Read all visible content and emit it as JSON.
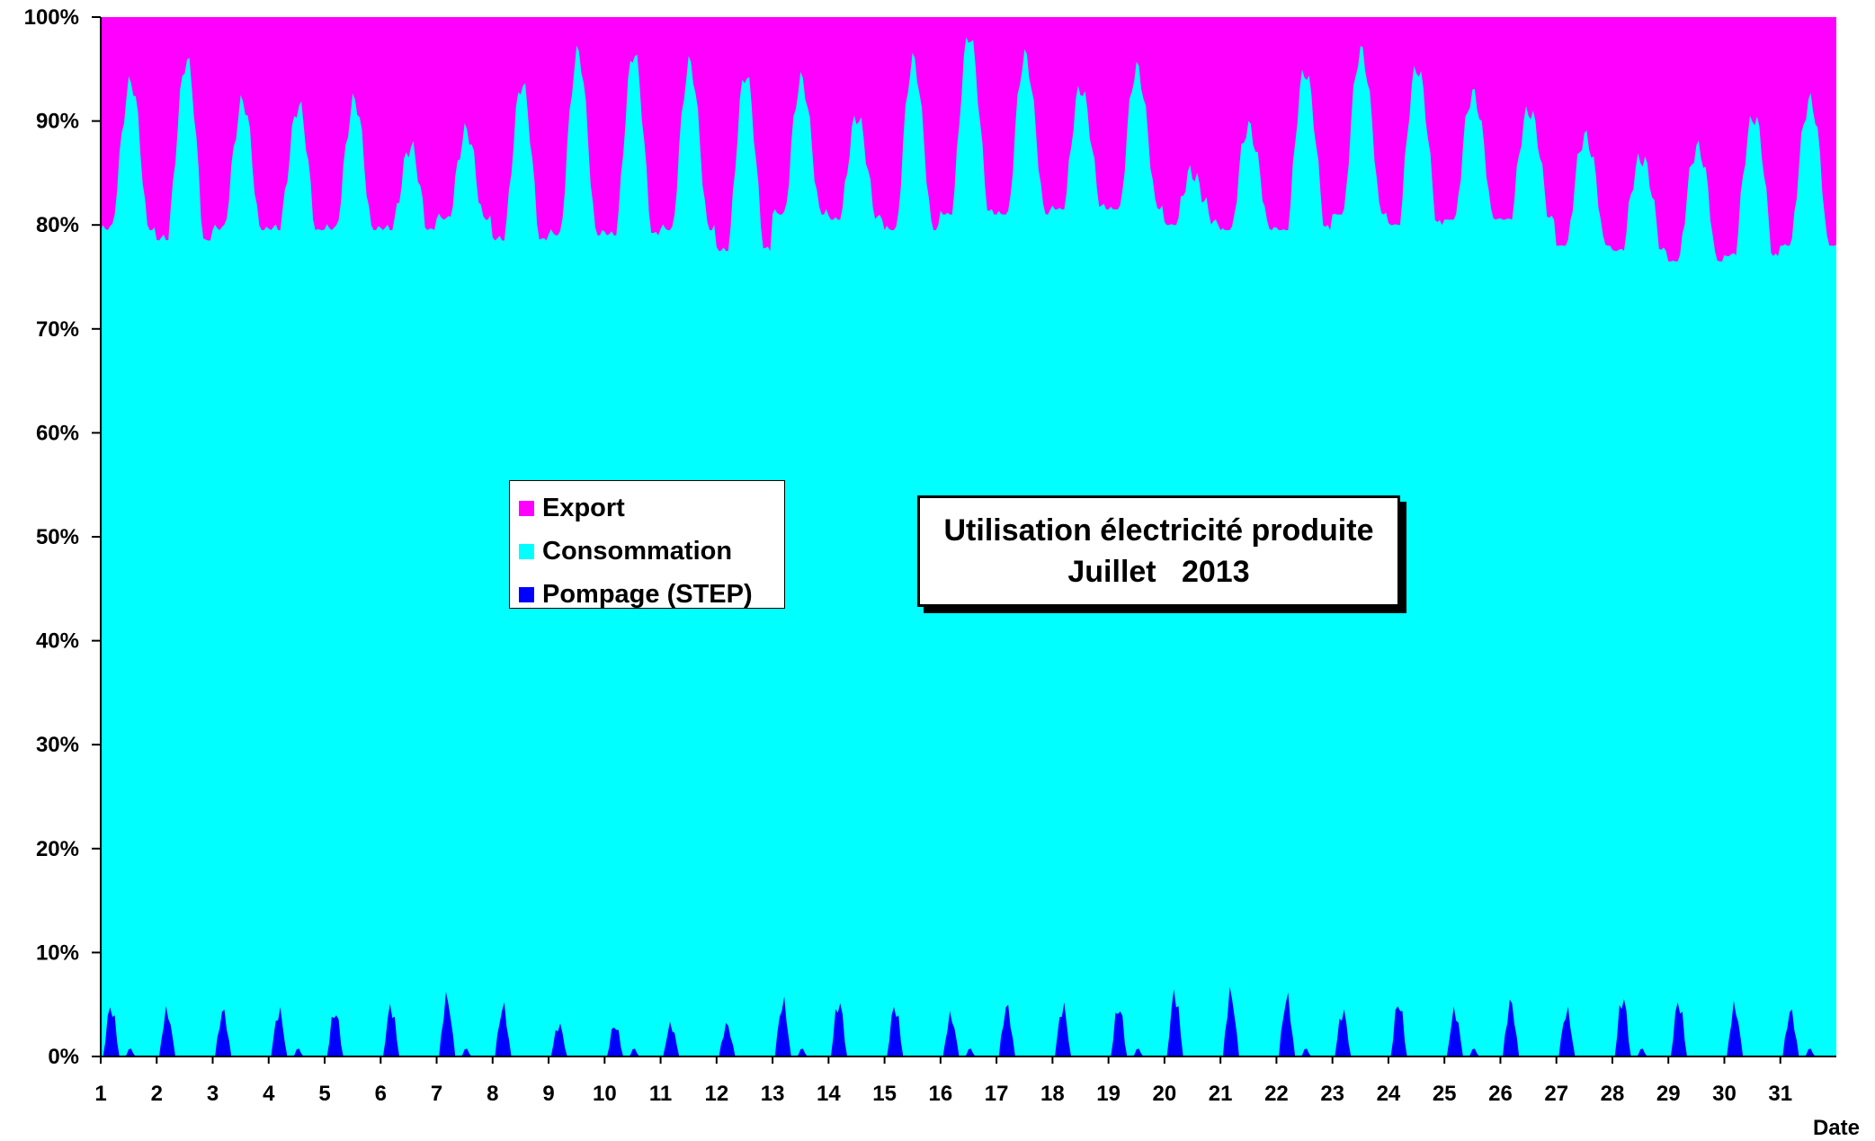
{
  "chart_data": {
    "type": "area",
    "stacked": true,
    "normalized_percent": true,
    "title": "Utilisation électricité produite",
    "subtitle": "Juillet   2013",
    "xlabel": "Date",
    "ylabel": "",
    "ylim": [
      0,
      100
    ],
    "yticks": [
      "0%",
      "10%",
      "20%",
      "30%",
      "40%",
      "50%",
      "60%",
      "70%",
      "80%",
      "90%",
      "100%"
    ],
    "xticks": [
      "1",
      "2",
      "3",
      "4",
      "5",
      "6",
      "7",
      "8",
      "9",
      "10",
      "11",
      "12",
      "13",
      "14",
      "15",
      "16",
      "17",
      "18",
      "19",
      "20",
      "21",
      "22",
      "23",
      "24",
      "25",
      "26",
      "27",
      "28",
      "29",
      "30",
      "31"
    ],
    "legend_position": "center-left",
    "grid": false,
    "series": [
      {
        "name": "Export",
        "color": "#FF00FF",
        "values_note": "remainder to 100%"
      },
      {
        "name": "Consommation",
        "color": "#00FFFF",
        "top_envelope_percent_by_day": [
          {
            "day": 1,
            "min": 79.5,
            "peak": 93.5
          },
          {
            "day": 2,
            "min": 78.5,
            "peak": 95.5
          },
          {
            "day": 3,
            "min": 79.5,
            "peak": 91.5
          },
          {
            "day": 4,
            "min": 79.5,
            "peak": 91.0
          },
          {
            "day": 5,
            "min": 79.5,
            "peak": 91.5
          },
          {
            "day": 6,
            "min": 79.5,
            "peak": 87.0
          },
          {
            "day": 7,
            "min": 80.5,
            "peak": 88.5
          },
          {
            "day": 8,
            "min": 78.5,
            "peak": 93.0
          },
          {
            "day": 9,
            "min": 79.0,
            "peak": 96.0
          },
          {
            "day": 10,
            "min": 79.0,
            "peak": 96.0
          },
          {
            "day": 11,
            "min": 79.5,
            "peak": 95.0
          },
          {
            "day": 12,
            "min": 77.5,
            "peak": 94.0
          },
          {
            "day": 13,
            "min": 81.0,
            "peak": 93.5
          },
          {
            "day": 14,
            "min": 80.5,
            "peak": 90.0
          },
          {
            "day": 15,
            "min": 79.5,
            "peak": 95.5
          },
          {
            "day": 16,
            "min": 81.0,
            "peak": 98.0
          },
          {
            "day": 17,
            "min": 81.0,
            "peak": 96.0
          },
          {
            "day": 18,
            "min": 81.5,
            "peak": 93.0
          },
          {
            "day": 19,
            "min": 81.5,
            "peak": 95.0
          },
          {
            "day": 20,
            "min": 80.0,
            "peak": 85.0
          },
          {
            "day": 21,
            "min": 79.5,
            "peak": 89.5
          },
          {
            "day": 22,
            "min": 79.5,
            "peak": 95.0
          },
          {
            "day": 23,
            "min": 81.0,
            "peak": 97.0
          },
          {
            "day": 24,
            "min": 80.0,
            "peak": 95.5
          },
          {
            "day": 25,
            "min": 80.5,
            "peak": 93.0
          },
          {
            "day": 26,
            "min": 80.5,
            "peak": 91.5
          },
          {
            "day": 27,
            "min": 78.0,
            "peak": 89.0
          },
          {
            "day": 28,
            "min": 77.5,
            "peak": 87.0
          },
          {
            "day": 29,
            "min": 76.5,
            "peak": 88.0
          },
          {
            "day": 30,
            "min": 77.0,
            "peak": 91.0
          },
          {
            "day": 31,
            "min": 78.0,
            "peak": 92.5
          }
        ]
      },
      {
        "name": "Pompage (STEP)",
        "color": "#0000FF",
        "daily_peak_percent": [
          5.5,
          5.0,
          5.0,
          5.0,
          5.0,
          5.5,
          6.5,
          5.5,
          3.5,
          3.5,
          3.5,
          3.5,
          6.0,
          6.0,
          5.5,
          4.5,
          5.5,
          5.5,
          5.5,
          7.0,
          7.0,
          6.5,
          5.0,
          6.0,
          5.0,
          6.0,
          5.0,
          6.5,
          6.0,
          5.5,
          5.0
        ]
      }
    ]
  },
  "legend": {
    "items": [
      {
        "label": "Export",
        "color": "#FF00FF"
      },
      {
        "label": "Consommation",
        "color": "#00FFFF"
      },
      {
        "label": "Pompage (STEP)",
        "color": "#0000FF"
      }
    ]
  },
  "title_box": {
    "line1": "Utilisation électricité produite",
    "line2": "Juillet   2013"
  }
}
